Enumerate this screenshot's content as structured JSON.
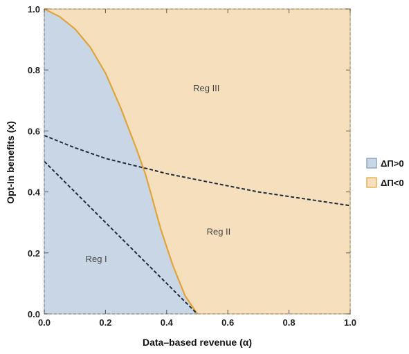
{
  "chart_data": {
    "type": "area",
    "xlabel": "Data–based revenue (α)",
    "ylabel": "Opt-In benefits (x)",
    "xlim": [
      0,
      1
    ],
    "ylim": [
      0,
      1
    ],
    "x_ticks": [
      "0.0",
      "0.2",
      "0.4",
      "0.6",
      "0.8",
      "1.0"
    ],
    "y_ticks": [
      "0.0",
      "0.2",
      "0.4",
      "0.6",
      "0.8",
      "1.0"
    ],
    "regions": [
      {
        "name": "ΔΠ>0",
        "color": "#c9d6e6",
        "description_boundary": "area left of solid boundary curve"
      },
      {
        "name": "ΔΠ<0",
        "color": "#f6dfbd",
        "description_boundary": "area right of solid boundary curve"
      }
    ],
    "boundary_curve": {
      "color": "#e0a43a",
      "x": [
        0.0,
        0.05,
        0.1,
        0.15,
        0.2,
        0.25,
        0.3,
        0.33,
        0.35,
        0.38,
        0.42,
        0.46,
        0.5
      ],
      "y": [
        1.0,
        0.975,
        0.935,
        0.875,
        0.79,
        0.675,
        0.545,
        0.46,
        0.39,
        0.28,
        0.16,
        0.06,
        0.0
      ]
    },
    "dashed_lines": [
      {
        "x": [
          0.0,
          0.1,
          0.2,
          0.3,
          0.35,
          0.4,
          0.5,
          0.6,
          0.7,
          0.8,
          0.9,
          1.0
        ],
        "y": [
          0.585,
          0.545,
          0.51,
          0.485,
          0.473,
          0.46,
          0.44,
          0.42,
          0.4,
          0.385,
          0.37,
          0.355
        ]
      },
      {
        "x": [
          0.0,
          0.5
        ],
        "y": [
          0.5,
          0.0
        ]
      }
    ],
    "annotations": [
      {
        "text": "Reg I",
        "x": 0.17,
        "y": 0.17
      },
      {
        "text": "Reg II",
        "x": 0.57,
        "y": 0.26
      },
      {
        "text": "Reg III",
        "x": 0.53,
        "y": 0.73
      }
    ],
    "legend": {
      "placement": "right",
      "entries": [
        {
          "label": "ΔΠ>0",
          "color": "#c9d6e6",
          "edge": "#7e96b8"
        },
        {
          "label": "ΔΠ<0",
          "color": "#f6dfbd",
          "edge": "#e0a43a"
        }
      ]
    },
    "grid": false
  }
}
